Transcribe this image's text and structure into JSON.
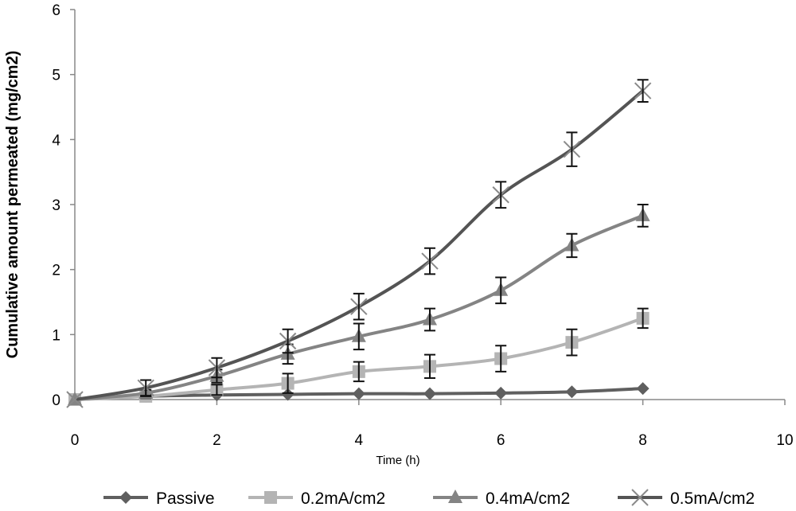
{
  "chart_data": {
    "type": "line",
    "title": "",
    "xlabel": "Time (h)",
    "ylabel": "Cumulative amount permeated (mg/cm2)",
    "xlim": [
      0,
      10
    ],
    "ylim": [
      0,
      6
    ],
    "xticks": [
      0,
      2,
      4,
      6,
      8,
      10
    ],
    "yticks": [
      0,
      1,
      2,
      3,
      4,
      5,
      6
    ],
    "grid": false,
    "legend_position": "bottom",
    "x": [
      0,
      1,
      2,
      3,
      4,
      5,
      6,
      7,
      8
    ],
    "series": [
      {
        "name": "Passive",
        "marker": "diamond",
        "color": "#5f5f5f",
        "values": [
          0,
          0.05,
          0.07,
          0.08,
          0.09,
          0.09,
          0.1,
          0.12,
          0.17
        ],
        "errors": [
          0,
          0,
          0,
          0,
          0,
          0,
          0,
          0,
          0
        ]
      },
      {
        "name": "0.2mA/cm2",
        "marker": "square",
        "color": "#b4b4b4",
        "values": [
          0,
          0.05,
          0.15,
          0.25,
          0.43,
          0.51,
          0.63,
          0.88,
          1.25
        ],
        "errors": [
          0,
          0.03,
          0.08,
          0.15,
          0.15,
          0.18,
          0.2,
          0.2,
          0.15
        ]
      },
      {
        "name": "0.4mA/cm2",
        "marker": "triangle",
        "color": "#848484",
        "values": [
          0,
          0.1,
          0.36,
          0.7,
          0.97,
          1.23,
          1.68,
          2.37,
          2.83
        ],
        "errors": [
          0,
          0.05,
          0.1,
          0.15,
          0.2,
          0.17,
          0.2,
          0.18,
          0.17
        ]
      },
      {
        "name": "0.5mA/cm2",
        "marker": "x",
        "color": "#545454",
        "values": [
          0,
          0.18,
          0.49,
          0.9,
          1.43,
          2.13,
          3.15,
          3.85,
          4.75
        ],
        "errors": [
          0,
          0.12,
          0.15,
          0.18,
          0.2,
          0.2,
          0.2,
          0.26,
          0.17
        ]
      }
    ]
  }
}
